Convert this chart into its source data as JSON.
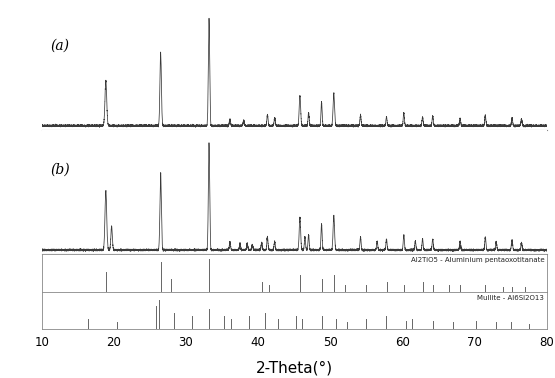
{
  "xlabel": "2-Theta(°)",
  "xlim": [
    10,
    80
  ],
  "label_a": "(a)",
  "label_b": "(b)",
  "ref1_label": "Al2TiO5 - Aluminium pentaoxotitanate",
  "ref2_label": "Mullite - Al6Si2O13",
  "background_color": "#ffffff",
  "line_color": "#3a3a3a",
  "ref_line_color": "#666666",
  "peaks_a": [
    18.9,
    26.5,
    33.2,
    36.1,
    38.0,
    41.3,
    42.3,
    45.8,
    47.0,
    48.8,
    50.5,
    54.2,
    57.8,
    60.2,
    62.8,
    64.2,
    68.0,
    71.5,
    75.2,
    76.5
  ],
  "heights_a": [
    0.42,
    0.68,
    1.0,
    0.06,
    0.05,
    0.1,
    0.07,
    0.28,
    0.12,
    0.22,
    0.3,
    0.1,
    0.08,
    0.12,
    0.08,
    0.09,
    0.07,
    0.1,
    0.07,
    0.06
  ],
  "widths_a": [
    0.12,
    0.1,
    0.09,
    0.08,
    0.08,
    0.08,
    0.08,
    0.1,
    0.08,
    0.08,
    0.1,
    0.08,
    0.08,
    0.08,
    0.08,
    0.08,
    0.08,
    0.08,
    0.08,
    0.08
  ],
  "peaks_b": [
    18.9,
    19.7,
    26.5,
    33.2,
    36.1,
    37.5,
    38.5,
    39.2,
    40.5,
    41.3,
    42.3,
    45.8,
    46.5,
    47.0,
    48.8,
    50.5,
    54.2,
    56.5,
    57.8,
    60.2,
    61.8,
    62.8,
    64.2,
    68.0,
    71.5,
    73.0,
    75.2,
    76.5
  ],
  "heights_b": [
    0.55,
    0.22,
    0.72,
    1.0,
    0.07,
    0.06,
    0.06,
    0.05,
    0.07,
    0.12,
    0.08,
    0.3,
    0.12,
    0.14,
    0.24,
    0.32,
    0.12,
    0.08,
    0.1,
    0.14,
    0.08,
    0.1,
    0.1,
    0.08,
    0.12,
    0.08,
    0.09,
    0.07
  ],
  "widths_b": [
    0.12,
    0.1,
    0.1,
    0.09,
    0.08,
    0.08,
    0.08,
    0.08,
    0.08,
    0.08,
    0.08,
    0.1,
    0.08,
    0.08,
    0.08,
    0.1,
    0.08,
    0.08,
    0.08,
    0.08,
    0.08,
    0.08,
    0.08,
    0.08,
    0.08,
    0.08,
    0.08,
    0.08
  ],
  "ref1_peaks": [
    18.9,
    26.5,
    28.0,
    33.2,
    40.5,
    41.5,
    45.8,
    48.8,
    50.5,
    52.0,
    55.0,
    57.8,
    60.2,
    62.8,
    64.2,
    66.5,
    68.0,
    71.5,
    74.0,
    75.2,
    77.0
  ],
  "ref1_heights": [
    0.6,
    0.9,
    0.4,
    1.0,
    0.3,
    0.2,
    0.5,
    0.4,
    0.5,
    0.2,
    0.2,
    0.3,
    0.2,
    0.3,
    0.2,
    0.2,
    0.2,
    0.2,
    0.15,
    0.15,
    0.15
  ],
  "ref2_peaks": [
    16.4,
    20.5,
    25.9,
    26.3,
    28.3,
    30.9,
    33.2,
    35.3,
    36.2,
    38.8,
    40.9,
    42.8,
    45.2,
    46.1,
    48.9,
    50.8,
    52.3,
    55.0,
    57.7,
    60.5,
    61.3,
    64.3,
    67.0,
    70.2,
    73.0,
    75.0,
    77.5
  ],
  "ref2_heights": [
    0.3,
    0.2,
    0.7,
    0.9,
    0.5,
    0.4,
    0.6,
    0.4,
    0.3,
    0.4,
    0.5,
    0.3,
    0.4,
    0.3,
    0.4,
    0.3,
    0.2,
    0.3,
    0.4,
    0.25,
    0.3,
    0.25,
    0.2,
    0.25,
    0.2,
    0.2,
    0.15
  ]
}
